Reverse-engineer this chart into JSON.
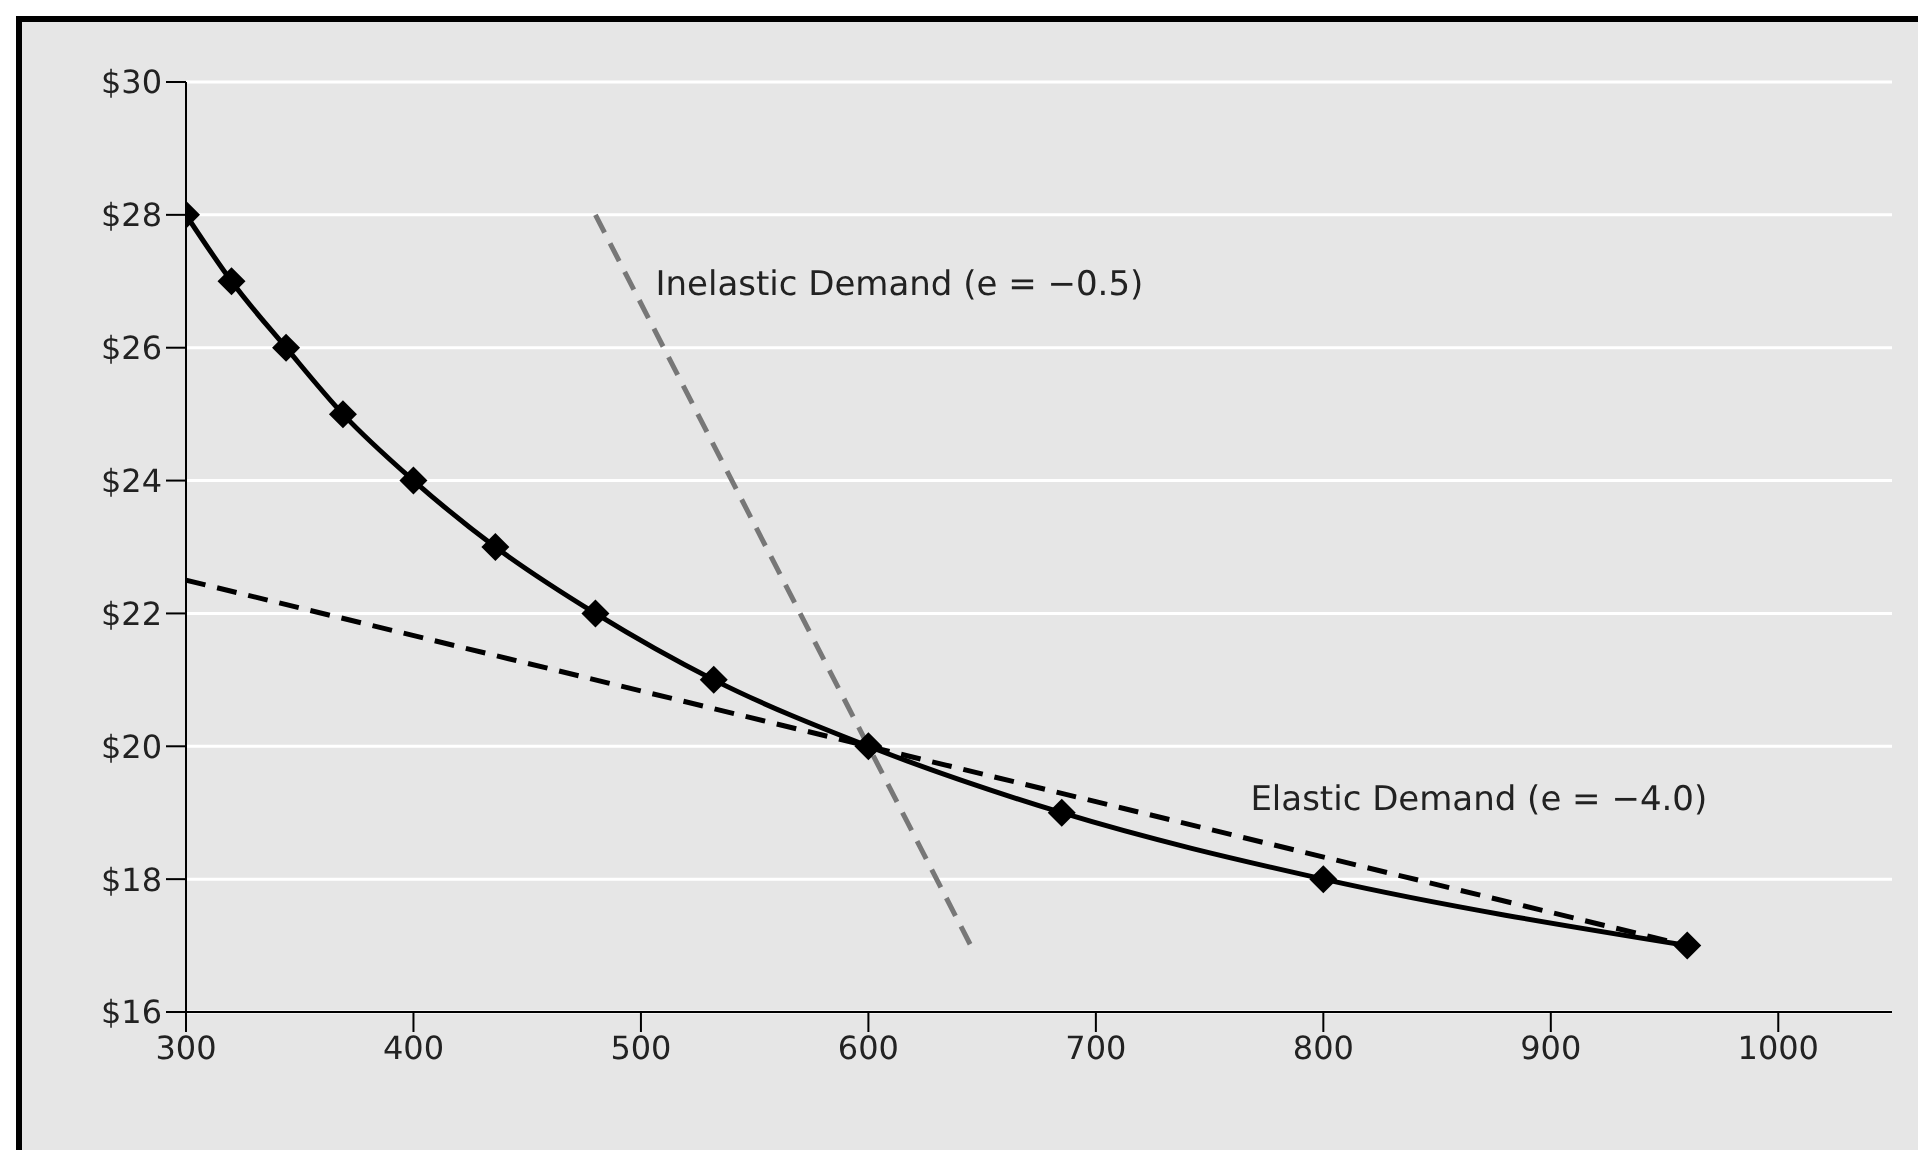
{
  "chart_data": {
    "type": "line",
    "xlim": [
      300,
      1050
    ],
    "xticks": [
      300,
      400,
      500,
      600,
      700,
      800,
      900,
      1000
    ],
    "ylim": [
      16,
      30
    ],
    "yticks": [
      {
        "value": 16,
        "label": "$16"
      },
      {
        "value": 18,
        "label": "$18"
      },
      {
        "value": 20,
        "label": "$20"
      },
      {
        "value": 22,
        "label": "$22"
      },
      {
        "value": 24,
        "label": "$24"
      },
      {
        "value": 26,
        "label": "$26"
      },
      {
        "value": 28,
        "label": "$28"
      },
      {
        "value": 30,
        "label": "$30"
      }
    ],
    "grid": "y",
    "series": [
      {
        "color": "#000000",
        "marker": "diamond",
        "line_style": "solid",
        "x": [
          300,
          320,
          344,
          369,
          400,
          436,
          480,
          532,
          600,
          685,
          800,
          960
        ],
        "values": [
          28,
          27,
          26,
          25,
          24,
          23,
          22,
          21,
          20,
          19,
          18,
          17
        ]
      },
      {
        "name": "Elastic Demand (e = −4.0)",
        "color": "#000000",
        "marker": "none",
        "line_style": "dashed",
        "x": [
          300,
          960
        ],
        "values": [
          22.5,
          17
        ]
      },
      {
        "name": "Inelastic Demand (e = −0.5)",
        "color": "#777777",
        "marker": "none",
        "line_style": "dashed",
        "x": [
          480,
          645
        ],
        "values": [
          28,
          17
        ]
      }
    ]
  }
}
